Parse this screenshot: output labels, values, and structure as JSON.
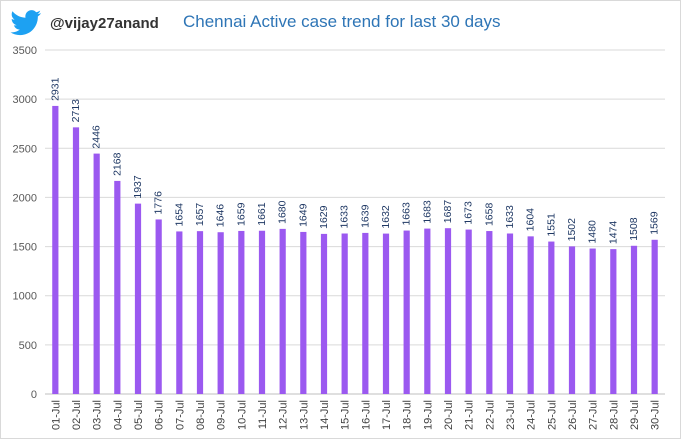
{
  "header": {
    "handle": "@vijay27anand",
    "icon": "twitter-bird-icon",
    "icon_color": "#1da1f2"
  },
  "colors": {
    "bar": "#9b59f0",
    "title": "#2e75b6",
    "grid": "#d9d9d9",
    "label": "#1f3864"
  },
  "chart_data": {
    "type": "bar",
    "title": "Chennai Active case trend for last 30 days",
    "xlabel": "",
    "ylabel": "",
    "ylim": [
      0,
      3500
    ],
    "yticks": [
      0,
      500,
      1000,
      1500,
      2000,
      2500,
      3000,
      3500
    ],
    "grid": true,
    "legend": "none",
    "categories": [
      "01-Jul",
      "02-Jul",
      "03-Jul",
      "04-Jul",
      "05-Jul",
      "06-Jul",
      "07-Jul",
      "08-Jul",
      "09-Jul",
      "10-Jul",
      "11-Jul",
      "12-Jul",
      "13-Jul",
      "14-Jul",
      "15-Jul",
      "16-Jul",
      "17-Jul",
      "18-Jul",
      "19-Jul",
      "20-Jul",
      "21-Jul",
      "22-Jul",
      "23-Jul",
      "24-Jul",
      "25-Jul",
      "26-Jul",
      "27-Jul",
      "28-Jul",
      "29-Jul",
      "30-Jul"
    ],
    "values": [
      2931,
      2713,
      2446,
      2168,
      1937,
      1776,
      1654,
      1657,
      1646,
      1659,
      1661,
      1680,
      1649,
      1629,
      1633,
      1639,
      1632,
      1663,
      1683,
      1687,
      1673,
      1658,
      1633,
      1604,
      1551,
      1502,
      1480,
      1474,
      1508,
      1569
    ]
  }
}
